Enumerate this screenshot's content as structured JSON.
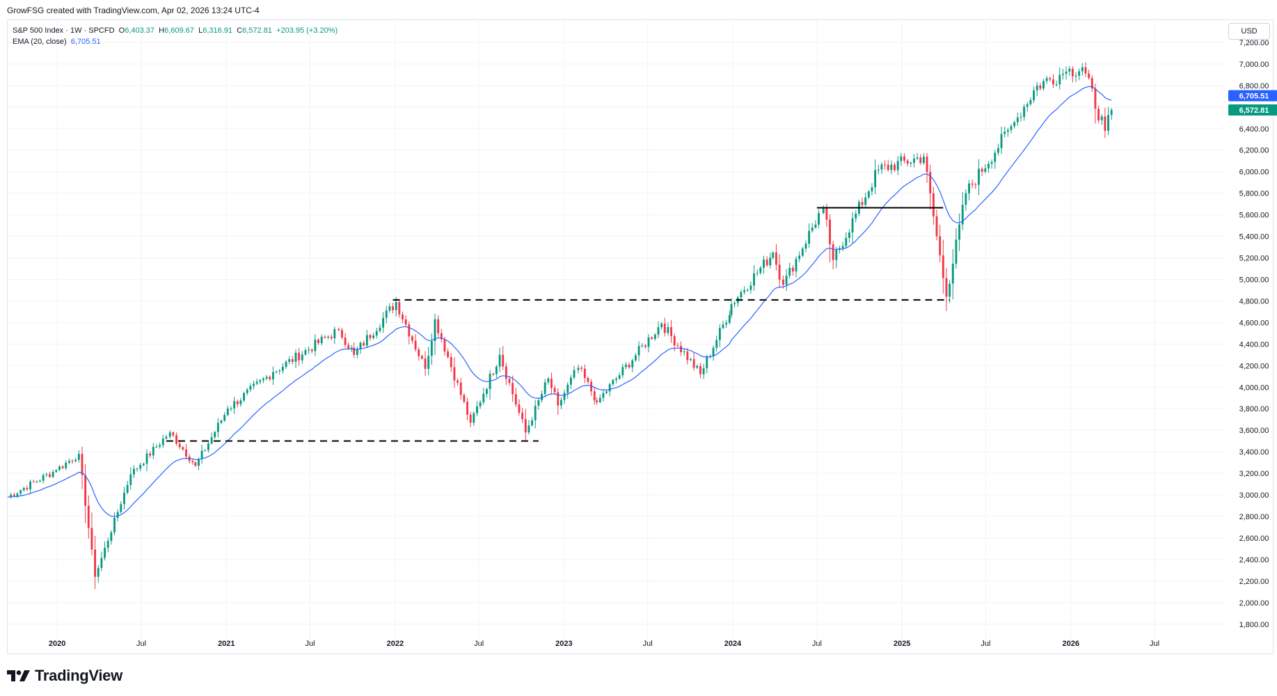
{
  "header": {
    "credit": "GrowFSG created with TradingView.com, Apr 02, 2026 13:24 UTC-4"
  },
  "legend": {
    "symbol": "S&P 500 Index · 1W · SPCFD",
    "o_label": "O",
    "o_value": "6,403.37",
    "h_label": "H",
    "h_value": "6,609.67",
    "l_label": "L",
    "l_value": "6,316.91",
    "c_label": "C",
    "c_value": "6,572.81",
    "change": "+203.95 (+3.20%)",
    "ema_label": "EMA (20, close)",
    "ema_value": "6,705.51"
  },
  "currency": "USD",
  "brand": {
    "name": "TradingView"
  },
  "colors": {
    "up": "#089981",
    "down": "#f23645",
    "ema": "#2962ff",
    "grid": "#f0f3fa",
    "axis_text": "#131722"
  },
  "chart_data": {
    "type": "candlestick",
    "y_ticks": [
      "1,800.00",
      "2,000.00",
      "2,200.00",
      "2,400.00",
      "2,600.00",
      "2,800.00",
      "3,000.00",
      "3,200.00",
      "3,400.00",
      "3,600.00",
      "3,800.00",
      "4,000.00",
      "4,200.00",
      "4,400.00",
      "4,600.00",
      "4,800.00",
      "5,000.00",
      "5,200.00",
      "5,400.00",
      "5,600.00",
      "5,800.00",
      "6,000.00",
      "6,200.00",
      "6,400.00",
      "6,600.00",
      "6,800.00",
      "7,000.00",
      "7,200.00"
    ],
    "y_tick_values": [
      1800,
      2000,
      2200,
      2400,
      2600,
      2800,
      3000,
      3200,
      3400,
      3600,
      3800,
      4000,
      4200,
      4400,
      4600,
      4800,
      5000,
      5200,
      5400,
      5600,
      5800,
      6000,
      6200,
      6400,
      6600,
      6800,
      7000,
      7200
    ],
    "ylim": [
      1650,
      7400
    ],
    "xlim": [
      "2019-09-16",
      "2026-11-30"
    ],
    "x_ticks": [
      {
        "label": "2020",
        "date": "2020-01-01",
        "bold": true
      },
      {
        "label": "Jul",
        "date": "2020-07-01",
        "bold": false
      },
      {
        "label": "2021",
        "date": "2021-01-01",
        "bold": true
      },
      {
        "label": "Jul",
        "date": "2021-07-01",
        "bold": false
      },
      {
        "label": "2022",
        "date": "2022-01-01",
        "bold": true
      },
      {
        "label": "Jul",
        "date": "2022-07-01",
        "bold": false
      },
      {
        "label": "2023",
        "date": "2023-01-01",
        "bold": true
      },
      {
        "label": "Jul",
        "date": "2023-07-01",
        "bold": false
      },
      {
        "label": "2024",
        "date": "2024-01-01",
        "bold": true
      },
      {
        "label": "Jul",
        "date": "2024-07-01",
        "bold": false
      },
      {
        "label": "2025",
        "date": "2025-01-01",
        "bold": true
      },
      {
        "label": "Jul",
        "date": "2025-07-01",
        "bold": false
      },
      {
        "label": "2026",
        "date": "2026-01-01",
        "bold": true
      },
      {
        "label": "Jul",
        "date": "2026-07-01",
        "bold": false
      }
    ],
    "price_path": [
      [
        "2019-09-16",
        2980
      ],
      [
        "2019-12-30",
        3230
      ],
      [
        "2020-02-17",
        3380
      ],
      [
        "2020-03-23",
        2240
      ],
      [
        "2020-06-08",
        3190
      ],
      [
        "2020-09-01",
        3580
      ],
      [
        "2020-10-26",
        3270
      ],
      [
        "2021-01-04",
        3800
      ],
      [
        "2021-04-12",
        4140
      ],
      [
        "2021-09-01",
        4530
      ],
      [
        "2021-10-04",
        4300
      ],
      [
        "2022-01-03",
        4790
      ],
      [
        "2022-03-07",
        4170
      ],
      [
        "2022-03-28",
        4630
      ],
      [
        "2022-06-13",
        3670
      ],
      [
        "2022-08-15",
        4300
      ],
      [
        "2022-10-10",
        3580
      ],
      [
        "2022-11-28",
        4080
      ],
      [
        "2022-12-19",
        3830
      ],
      [
        "2023-02-01",
        4180
      ],
      [
        "2023-03-13",
        3860
      ],
      [
        "2023-07-31",
        4590
      ],
      [
        "2023-10-23",
        4120
      ],
      [
        "2023-12-29",
        4770
      ],
      [
        "2024-03-28",
        5250
      ],
      [
        "2024-04-19",
        4950
      ],
      [
        "2024-07-15",
        5660
      ],
      [
        "2024-08-05",
        5180
      ],
      [
        "2024-11-11",
        6020
      ],
      [
        "2025-02-17",
        6140
      ],
      [
        "2025-04-07",
        4840
      ],
      [
        "2025-05-19",
        5800
      ],
      [
        "2025-09-01",
        6460
      ],
      [
        "2025-10-20",
        6800
      ],
      [
        "2025-12-22",
        6930
      ],
      [
        "2026-01-26",
        6970
      ],
      [
        "2026-03-16",
        6380
      ],
      [
        "2026-03-30",
        6572.81
      ]
    ],
    "ema_period": 20,
    "series": [],
    "last_price": "6,572.81",
    "last_ema": "6,705.51",
    "annotations": [
      {
        "style": "dashed",
        "price": 4810,
        "from": "2021-12-27",
        "to": "2025-04-14"
      },
      {
        "style": "dashed",
        "price": 3500,
        "from": "2020-08-24",
        "to": "2022-11-07"
      },
      {
        "style": "solid",
        "price": 5665,
        "from": "2024-07-01",
        "to": "2025-03-31"
      }
    ]
  }
}
